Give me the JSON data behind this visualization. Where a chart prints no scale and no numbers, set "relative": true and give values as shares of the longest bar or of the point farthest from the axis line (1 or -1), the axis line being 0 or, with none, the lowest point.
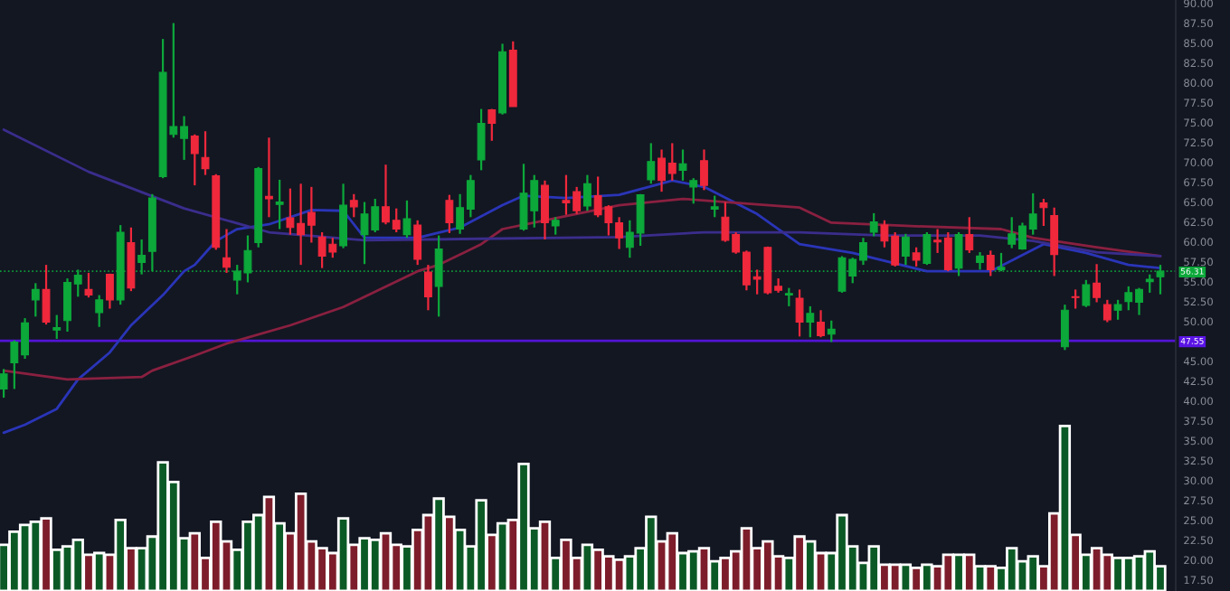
{
  "chart_data": [
    {
      "type": "candlestick",
      "categories": [
        null,
        null,
        null,
        null,
        null,
        null,
        null,
        null,
        null,
        null,
        null,
        null,
        null,
        null,
        null,
        null,
        null,
        null,
        null,
        null,
        null,
        null,
        null,
        null,
        null,
        null,
        null,
        null,
        null,
        null,
        null,
        null,
        null,
        null,
        null,
        null,
        null,
        null,
        null,
        null,
        null,
        null,
        null,
        null,
        null,
        null,
        null,
        null,
        null,
        null,
        null,
        null,
        null,
        null,
        null,
        null,
        null,
        null,
        null,
        null,
        null,
        null,
        null,
        null,
        null,
        null,
        null,
        null,
        null,
        null,
        null,
        null,
        null,
        null,
        null,
        null,
        null,
        null,
        null,
        null,
        null,
        null,
        null,
        null,
        null,
        null,
        null,
        null,
        null,
        null,
        null,
        null,
        null,
        null,
        null,
        null,
        null,
        null,
        null,
        null,
        null,
        null,
        null,
        null,
        null,
        null,
        null,
        null,
        null,
        null
      ],
      "ohlc": [
        [
          41.5,
          44.0,
          40.4,
          43.4
        ],
        [
          44.8,
          47.6,
          41.5,
          47.4
        ],
        [
          45.8,
          50.4,
          45.3,
          49.8
        ],
        [
          52.7,
          54.8,
          50.6,
          54.0
        ],
        [
          54.0,
          57.1,
          49.6,
          49.9
        ],
        [
          48.9,
          50.8,
          47.8,
          49.2
        ],
        [
          50.1,
          55.4,
          48.7,
          54.9
        ],
        [
          54.7,
          56.5,
          53.1,
          55.8
        ],
        [
          54.0,
          56.1,
          53.0,
          53.3
        ],
        [
          51.1,
          53.3,
          49.3,
          52.7
        ],
        [
          55.9,
          56.0,
          51.6,
          52.7
        ],
        [
          52.7,
          62.1,
          52.1,
          61.2
        ],
        [
          59.9,
          61.8,
          53.8,
          54.2
        ],
        [
          57.4,
          60.3,
          55.9,
          58.3
        ],
        [
          58.8,
          66.0,
          56.3,
          65.5
        ],
        [
          68.2,
          85.5,
          68.0,
          81.3
        ],
        [
          73.5,
          87.5,
          73.1,
          74.5
        ],
        [
          73.0,
          75.8,
          70.3,
          74.5
        ],
        [
          73.3,
          73.5,
          67.1,
          71.1
        ],
        [
          70.6,
          73.9,
          68.4,
          69.2
        ],
        [
          68.3,
          68.5,
          59.0,
          59.3
        ],
        [
          58.0,
          61.6,
          56.1,
          56.8
        ],
        [
          55.2,
          57.1,
          53.4,
          56.3
        ],
        [
          56.1,
          60.8,
          54.9,
          58.9
        ],
        [
          59.9,
          69.4,
          59.3,
          69.2
        ],
        [
          65.7,
          73.1,
          63.1,
          65.4
        ],
        [
          64.7,
          67.8,
          61.6,
          65.0
        ],
        [
          63.0,
          66.7,
          60.9,
          61.8
        ],
        [
          62.3,
          67.3,
          57.1,
          60.9
        ],
        [
          63.7,
          66.9,
          59.9,
          62.1
        ],
        [
          60.6,
          61.2,
          56.7,
          58.2
        ],
        [
          59.7,
          60.5,
          58.0,
          58.7
        ],
        [
          59.5,
          67.3,
          59.2,
          64.6
        ],
        [
          65.2,
          66.0,
          63.1,
          64.4
        ],
        [
          60.9,
          65.0,
          57.2,
          63.5
        ],
        [
          61.5,
          65.4,
          61.2,
          64.4
        ],
        [
          64.4,
          69.7,
          62.2,
          62.5
        ],
        [
          62.7,
          64.2,
          61.2,
          61.6
        ],
        [
          60.9,
          65.2,
          60.5,
          62.9
        ],
        [
          62.1,
          62.7,
          57.1,
          57.8
        ],
        [
          56.2,
          57.1,
          51.4,
          53.1
        ],
        [
          54.4,
          60.8,
          50.6,
          59.1
        ],
        [
          65.2,
          65.9,
          61.1,
          62.4
        ],
        [
          61.6,
          66.0,
          61.0,
          64.3
        ],
        [
          64.1,
          68.4,
          63.1,
          67.7
        ],
        [
          70.3,
          76.7,
          69.0,
          74.9
        ],
        [
          76.6,
          76.7,
          72.7,
          74.9
        ],
        [
          76.2,
          84.9,
          76.0,
          83.9
        ],
        [
          84.1,
          85.2,
          77.0,
          77.0
        ],
        [
          61.6,
          69.8,
          61.4,
          66.1
        ],
        [
          63.9,
          68.4,
          61.8,
          67.7
        ],
        [
          67.1,
          67.7,
          60.3,
          62.4
        ],
        [
          62.0,
          63.1,
          60.9,
          62.7
        ],
        [
          65.2,
          68.4,
          63.4,
          64.9
        ],
        [
          66.3,
          66.9,
          63.5,
          63.9
        ],
        [
          64.5,
          68.4,
          63.9,
          67.3
        ],
        [
          65.8,
          68.2,
          63.1,
          63.4
        ],
        [
          64.4,
          64.6,
          60.8,
          62.4
        ],
        [
          62.4,
          63.1,
          59.1,
          60.5
        ],
        [
          59.3,
          62.7,
          58.0,
          61.2
        ],
        [
          61.1,
          66.0,
          59.5,
          65.9
        ],
        [
          67.8,
          72.4,
          67.3,
          70.1
        ],
        [
          70.5,
          71.6,
          66.3,
          67.7
        ],
        [
          69.9,
          72.4,
          67.7,
          68.6
        ],
        [
          69.0,
          71.6,
          67.7,
          69.8
        ],
        [
          66.9,
          68.0,
          64.8,
          67.7
        ],
        [
          70.2,
          71.6,
          66.5,
          67.1
        ],
        [
          64.1,
          65.8,
          63.1,
          64.4
        ],
        [
          63.1,
          65.0,
          60.0,
          60.2
        ],
        [
          60.9,
          61.2,
          58.5,
          58.7
        ],
        [
          58.7,
          58.9,
          53.9,
          54.6
        ],
        [
          55.6,
          56.5,
          53.4,
          55.3
        ],
        [
          59.3,
          59.4,
          53.4,
          53.6
        ],
        [
          54.4,
          55.4,
          53.6,
          53.9
        ],
        [
          53.3,
          54.2,
          51.9,
          53.5
        ],
        [
          52.9,
          54.0,
          48.1,
          49.9
        ],
        [
          49.9,
          51.9,
          48.0,
          51.0
        ],
        [
          49.9,
          51.4,
          48.0,
          48.2
        ],
        [
          48.4,
          50.1,
          47.4,
          49.0
        ],
        [
          53.8,
          58.2,
          53.6,
          58.0
        ],
        [
          55.7,
          58.0,
          54.8,
          57.8
        ],
        [
          57.7,
          60.5,
          57.1,
          59.9
        ],
        [
          61.2,
          63.6,
          60.7,
          62.5
        ],
        [
          62.1,
          62.7,
          59.3,
          60.1
        ],
        [
          60.7,
          61.2,
          56.9,
          57.1
        ],
        [
          58.2,
          61.0,
          57.1,
          60.6
        ],
        [
          58.6,
          59.3,
          56.9,
          57.7
        ],
        [
          57.3,
          61.2,
          57.1,
          60.9
        ],
        [
          60.2,
          61.6,
          58.6,
          60.0
        ],
        [
          60.5,
          61.2,
          56.3,
          56.5
        ],
        [
          56.7,
          61.2,
          55.7,
          60.9
        ],
        [
          60.9,
          63.1,
          58.6,
          59.0
        ],
        [
          57.4,
          58.7,
          56.5,
          58.2
        ],
        [
          58.3,
          58.9,
          55.7,
          56.5
        ],
        [
          56.5,
          58.6,
          56.3,
          56.8
        ],
        [
          59.7,
          63.1,
          59.2,
          61.0
        ],
        [
          59.1,
          62.4,
          59.0,
          62.0
        ],
        [
          61.6,
          66.1,
          60.9,
          63.5
        ],
        [
          64.9,
          65.4,
          62.0,
          64.3
        ],
        [
          63.3,
          64.3,
          55.7,
          58.4
        ],
        [
          46.8,
          52.1,
          46.4,
          51.4
        ],
        [
          53.1,
          54.0,
          51.6,
          53.0
        ],
        [
          52.0,
          55.2,
          51.8,
          54.6
        ],
        [
          54.8,
          57.2,
          52.4,
          53.0
        ],
        [
          52.1,
          52.7,
          49.9,
          50.2
        ],
        [
          51.4,
          52.7,
          50.2,
          52.1
        ],
        [
          52.5,
          54.4,
          51.4,
          53.6
        ],
        [
          52.4,
          54.2,
          50.8,
          54.0
        ],
        [
          55.0,
          55.9,
          53.6,
          55.3
        ],
        [
          55.6,
          57.1,
          53.4,
          56.31
        ]
      ],
      "colors": [
        "#0ca83a",
        "#0ca83a",
        "#0ca83a",
        "#0ca83a",
        "#f0283c",
        "#0ca83a",
        "#0ca83a",
        "#0ca83a",
        "#f0283c",
        "#0ca83a",
        "#f0283c",
        "#0ca83a",
        "#f0283c",
        "#0ca83a",
        "#0ca83a",
        "#0ca83a",
        "#0ca83a",
        "#0ca83a",
        "#f0283c",
        "#f0283c",
        "#f0283c",
        "#f0283c",
        "#0ca83a",
        "#0ca83a",
        "#0ca83a",
        "#f0283c",
        "#0ca83a",
        "#f0283c",
        "#f0283c",
        "#f0283c",
        "#f0283c",
        "#f0283c",
        "#0ca83a",
        "#f0283c",
        "#0ca83a",
        "#0ca83a",
        "#f0283c",
        "#f0283c",
        "#0ca83a",
        "#f0283c",
        "#f0283c",
        "#0ca83a",
        "#f0283c",
        "#0ca83a",
        "#0ca83a",
        "#0ca83a",
        "#f0283c",
        "#0ca83a",
        "#f0283c",
        "#0ca83a",
        "#0ca83a",
        "#f0283c",
        "#0ca83a",
        "#f0283c",
        "#f0283c",
        "#0ca83a",
        "#f0283c",
        "#f0283c",
        "#f0283c",
        "#0ca83a",
        "#0ca83a",
        "#0ca83a",
        "#f0283c",
        "#f0283c",
        "#0ca83a",
        "#0ca83a",
        "#f0283c",
        "#0ca83a",
        "#f0283c",
        "#f0283c",
        "#f0283c",
        "#f0283c",
        "#f0283c",
        "#f0283c",
        "#0ca83a",
        "#f0283c",
        "#0ca83a",
        "#f0283c",
        "#0ca83a",
        "#0ca83a",
        "#0ca83a",
        "#0ca83a",
        "#0ca83a",
        "#f0283c",
        "#f0283c",
        "#0ca83a",
        "#f0283c",
        "#0ca83a",
        "#f0283c",
        "#f0283c",
        "#0ca83a",
        "#f0283c",
        "#0ca83a",
        "#f0283c",
        "#0ca83a",
        "#0ca83a",
        "#0ca83a",
        "#0ca83a",
        "#f0283c",
        "#f0283c",
        "#0ca83a",
        "#f0283c",
        "#0ca83a",
        "#f0283c",
        "#f0283c",
        "#0ca83a",
        "#0ca83a",
        "#0ca83a",
        "#0ca83a",
        "#0ca83a"
      ],
      "series": [
        {
          "type": "line",
          "color": "#2a35b8",
          "values": [
            36.0,
            null,
            37.0,
            null,
            null,
            39.0,
            null,
            42.7,
            null,
            null,
            46.1,
            null,
            49.5,
            null,
            null,
            53.3,
            null,
            56.3,
            57.1,
            null,
            60.1,
            null,
            61.6,
            null,
            null,
            62.2,
            null,
            null,
            null,
            64.0,
            null,
            null,
            63.9,
            null,
            60.5,
            null,
            null,
            null,
            null,
            60.5,
            null,
            null,
            null,
            61.8,
            null,
            null,
            null,
            64.6,
            null,
            65.8,
            null,
            null,
            null,
            65.5,
            null,
            null,
            null,
            null,
            65.9,
            null,
            null,
            null,
            null,
            67.7,
            null,
            null,
            66.9,
            null,
            null,
            null,
            null,
            63.5,
            null,
            null,
            null,
            59.7,
            null,
            null,
            null,
            null,
            58.6,
            null,
            null,
            null,
            null,
            null,
            null,
            56.3,
            null,
            null,
            null,
            null,
            null,
            56.3,
            null,
            null,
            null,
            null,
            59.7,
            null,
            null,
            null,
            58.6,
            null,
            null,
            null,
            57.1,
            null,
            null,
            56.7
          ]
        },
        {
          "type": "line",
          "color": "#8a2040",
          "values": [
            43.8,
            null,
            null,
            null,
            null,
            null,
            42.7,
            null,
            null,
            null,
            null,
            null,
            null,
            43.0,
            43.8,
            null,
            null,
            null,
            45.7,
            null,
            null,
            47.2,
            null,
            null,
            null,
            null,
            null,
            49.5,
            null,
            null,
            null,
            null,
            51.8,
            null,
            null,
            null,
            null,
            null,
            null,
            56.3,
            null,
            57.1,
            null,
            null,
            null,
            59.7,
            null,
            61.6,
            null,
            null,
            null,
            62.7,
            null,
            null,
            null,
            null,
            null,
            null,
            64.6,
            null,
            null,
            null,
            null,
            null,
            65.4,
            null,
            null,
            null,
            null,
            null,
            null,
            null,
            null,
            null,
            null,
            64.3,
            null,
            null,
            62.4,
            null,
            null,
            null,
            null,
            null,
            null,
            62.0,
            null,
            null,
            null,
            null,
            null,
            null,
            null,
            null,
            61.6,
            null,
            null,
            60.5,
            null,
            null,
            null,
            null,
            null,
            59.3,
            null,
            null,
            null,
            null,
            null,
            58.2
          ]
        },
        {
          "type": "line",
          "color": "#3a2d8c",
          "values": [
            74.1,
            null,
            null,
            null,
            null,
            null,
            null,
            null,
            68.8,
            null,
            null,
            null,
            null,
            null,
            null,
            null,
            null,
            64.2,
            null,
            null,
            null,
            null,
            null,
            null,
            null,
            61.2,
            null,
            null,
            null,
            null,
            null,
            null,
            null,
            null,
            60.2,
            null,
            null,
            null,
            null,
            null,
            null,
            null,
            null,
            null,
            null,
            null,
            null,
            null,
            null,
            null,
            null,
            null,
            null,
            null,
            null,
            null,
            null,
            null,
            60.6,
            null,
            null,
            null,
            null,
            null,
            null,
            null,
            61.2,
            null,
            null,
            null,
            null,
            null,
            null,
            null,
            null,
            61.2,
            null,
            null,
            null,
            null,
            null,
            null,
            null,
            60.8,
            null,
            null,
            null,
            null,
            null,
            null,
            null,
            null,
            60.8,
            null,
            null,
            null,
            null,
            60.1,
            null,
            null,
            null,
            null,
            null,
            58.7,
            null,
            null,
            null,
            null,
            null,
            58.2
          ]
        }
      ],
      "ref_lines": [
        {
          "axis": "y",
          "value": 56.31,
          "label": "56.31",
          "color": "#0ca83a",
          "line_style": "dotted"
        },
        {
          "axis": "y",
          "value": 47.55,
          "label": "47.55",
          "color": "#5a14e6",
          "line_style": "solid"
        }
      ],
      "ylim": [
        16.1,
        90.4
      ],
      "yticks": [
        {
          "value": 17.5,
          "label": "17.50"
        },
        {
          "value": 20,
          "label": "20.00"
        },
        {
          "value": 22.5,
          "label": "22.50"
        },
        {
          "value": 25,
          "label": "25.00"
        },
        {
          "value": 27.5,
          "label": "27.50"
        },
        {
          "value": 30,
          "label": "30.00"
        },
        {
          "value": 32.5,
          "label": "32.50"
        },
        {
          "value": 35,
          "label": "35.00"
        },
        {
          "value": 37.5,
          "label": "37.50"
        },
        {
          "value": 40,
          "label": "40.00"
        },
        {
          "value": 42.5,
          "label": "42.50"
        },
        {
          "value": 45,
          "label": "45.00"
        },
        {
          "value": 50,
          "label": "50.00"
        },
        {
          "value": 52.5,
          "label": "52.50"
        },
        {
          "value": 55,
          "label": "55.00"
        },
        {
          "value": 57.5,
          "label": "57.50"
        },
        {
          "value": 60,
          "label": "60.00"
        },
        {
          "value": 62.5,
          "label": "62.50"
        },
        {
          "value": 65,
          "label": "65.00"
        },
        {
          "value": 67.5,
          "label": "67.50"
        },
        {
          "value": 70,
          "label": "70.00"
        },
        {
          "value": 72.5,
          "label": "72.50"
        },
        {
          "value": 75,
          "label": "75.00"
        },
        {
          "value": 77.5,
          "label": "77.50"
        },
        {
          "value": 80,
          "label": "80.00"
        },
        {
          "value": 82.5,
          "label": "82.50"
        },
        {
          "value": 85,
          "label": "85.00"
        },
        {
          "value": 87.5,
          "label": "87.50"
        },
        {
          "value": 90,
          "label": "90.00"
        }
      ],
      "tick_labels": "y"
    },
    {
      "type": "bar",
      "relative": true,
      "categories": [
        null,
        null,
        null,
        null,
        null,
        null,
        null,
        null,
        null,
        null,
        null,
        null,
        null,
        null,
        null,
        null,
        null,
        null,
        null,
        null,
        null,
        null,
        null,
        null,
        null,
        null,
        null,
        null,
        null,
        null,
        null,
        null,
        null,
        null,
        null,
        null,
        null,
        null,
        null,
        null,
        null,
        null,
        null,
        null,
        null,
        null,
        null,
        null,
        null,
        null,
        null,
        null,
        null,
        null,
        null,
        null,
        null,
        null,
        null,
        null,
        null,
        null,
        null,
        null,
        null,
        null,
        null,
        null,
        null,
        null,
        null,
        null,
        null,
        null,
        null,
        null,
        null,
        null,
        null,
        null,
        null,
        null,
        null,
        null,
        null,
        null,
        null,
        null,
        null,
        null,
        null,
        null,
        null,
        null,
        null,
        null,
        null,
        null,
        null,
        null,
        null,
        null,
        null,
        null,
        null,
        null,
        null,
        null,
        null,
        null
      ],
      "values": [
        0.28,
        0.36,
        0.4,
        0.42,
        0.44,
        0.25,
        0.27,
        0.31,
        0.22,
        0.23,
        0.22,
        0.43,
        0.26,
        0.26,
        0.33,
        0.78,
        0.66,
        0.32,
        0.35,
        0.2,
        0.42,
        0.3,
        0.25,
        0.42,
        0.46,
        0.57,
        0.41,
        0.35,
        0.59,
        0.3,
        0.26,
        0.23,
        0.44,
        0.28,
        0.32,
        0.31,
        0.35,
        0.28,
        0.27,
        0.37,
        0.46,
        0.56,
        0.45,
        0.37,
        0.27,
        0.55,
        0.34,
        0.41,
        0.43,
        0.77,
        0.38,
        0.42,
        0.2,
        0.31,
        0.2,
        0.28,
        0.25,
        0.21,
        0.19,
        0.21,
        0.26,
        0.45,
        0.3,
        0.35,
        0.23,
        0.24,
        0.26,
        0.18,
        0.2,
        0.24,
        0.38,
        0.26,
        0.3,
        0.21,
        0.2,
        0.33,
        0.3,
        0.23,
        0.23,
        0.46,
        0.27,
        0.17,
        0.27,
        0.16,
        0.16,
        0.16,
        0.14,
        0.16,
        0.15,
        0.22,
        0.22,
        0.22,
        0.15,
        0.15,
        0.14,
        0.26,
        0.18,
        0.21,
        0.15,
        0.47,
        1,
        0.34,
        0.22,
        0.26,
        0.22,
        0.2,
        0.2,
        0.21,
        0.24,
        0.15
      ],
      "colors": [
        "#0b5a26",
        "#0b5a26",
        "#0b5a26",
        "#0b5a26",
        "#7d1d2b",
        "#0b5a26",
        "#0b5a26",
        "#0b5a26",
        "#7d1d2b",
        "#0b5a26",
        "#7d1d2b",
        "#0b5a26",
        "#7d1d2b",
        "#0b5a26",
        "#0b5a26",
        "#0b5a26",
        "#0b5a26",
        "#0b5a26",
        "#7d1d2b",
        "#7d1d2b",
        "#7d1d2b",
        "#7d1d2b",
        "#0b5a26",
        "#0b5a26",
        "#0b5a26",
        "#7d1d2b",
        "#0b5a26",
        "#7d1d2b",
        "#7d1d2b",
        "#7d1d2b",
        "#7d1d2b",
        "#7d1d2b",
        "#0b5a26",
        "#7d1d2b",
        "#0b5a26",
        "#0b5a26",
        "#7d1d2b",
        "#7d1d2b",
        "#0b5a26",
        "#7d1d2b",
        "#7d1d2b",
        "#0b5a26",
        "#7d1d2b",
        "#0b5a26",
        "#0b5a26",
        "#0b5a26",
        "#7d1d2b",
        "#0b5a26",
        "#7d1d2b",
        "#0b5a26",
        "#0b5a26",
        "#7d1d2b",
        "#0b5a26",
        "#7d1d2b",
        "#7d1d2b",
        "#0b5a26",
        "#7d1d2b",
        "#7d1d2b",
        "#7d1d2b",
        "#0b5a26",
        "#0b5a26",
        "#0b5a26",
        "#7d1d2b",
        "#7d1d2b",
        "#0b5a26",
        "#0b5a26",
        "#7d1d2b",
        "#0b5a26",
        "#7d1d2b",
        "#7d1d2b",
        "#7d1d2b",
        "#7d1d2b",
        "#7d1d2b",
        "#7d1d2b",
        "#0b5a26",
        "#7d1d2b",
        "#0b5a26",
        "#7d1d2b",
        "#0b5a26",
        "#0b5a26",
        "#0b5a26",
        "#0b5a26",
        "#0b5a26",
        "#7d1d2b",
        "#7d1d2b",
        "#0b5a26",
        "#7d1d2b",
        "#0b5a26",
        "#7d1d2b",
        "#7d1d2b",
        "#0b5a26",
        "#7d1d2b",
        "#0b5a26",
        "#7d1d2b",
        "#0b5a26",
        "#0b5a26",
        "#0b5a26",
        "#0b5a26",
        "#7d1d2b",
        "#7d1d2b",
        "#0b5a26",
        "#7d1d2b",
        "#0b5a26",
        "#7d1d2b",
        "#7d1d2b",
        "#0b5a26",
        "#0b5a26",
        "#0b5a26",
        "#0b5a26",
        "#0b5a26"
      ],
      "tick_labels": false
    }
  ]
}
